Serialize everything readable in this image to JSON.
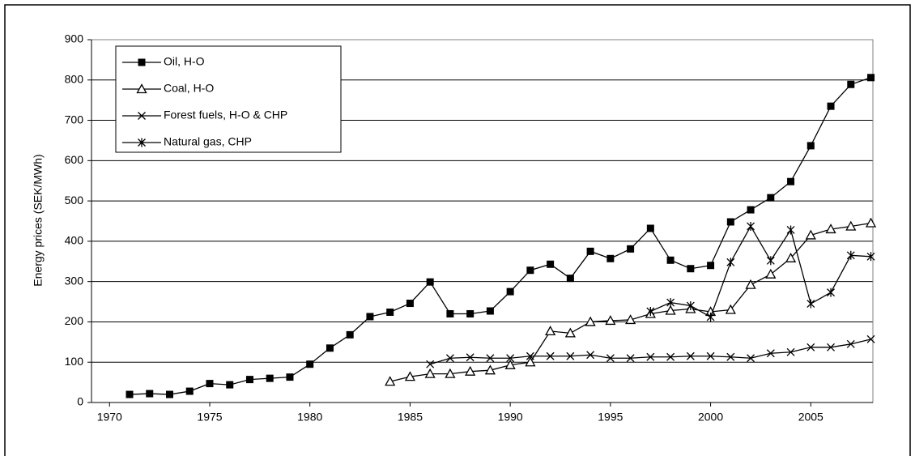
{
  "chart_data": {
    "type": "line",
    "y_label": "Energy prices (SEK/MWh)",
    "x": [
      1971,
      1972,
      1973,
      1974,
      1975,
      1976,
      1977,
      1978,
      1979,
      1980,
      1981,
      1982,
      1983,
      1984,
      1985,
      1986,
      1987,
      1988,
      1989,
      1990,
      1991,
      1992,
      1993,
      1994,
      1995,
      1996,
      1997,
      1998,
      1999,
      2000,
      2001,
      2002,
      2003,
      2004,
      2005,
      2006,
      2007,
      2008
    ],
    "series": [
      {
        "name": "Oil, H-O",
        "color": "#000000",
        "marker": "square",
        "values": [
          20,
          22,
          20,
          28,
          47,
          44,
          57,
          60,
          63,
          95,
          135,
          168,
          213,
          224,
          246,
          299,
          220,
          220,
          227,
          275,
          328,
          343,
          308,
          375,
          357,
          381,
          432,
          353,
          332,
          340,
          448,
          478,
          508,
          548,
          637,
          735,
          789,
          806
        ]
      },
      {
        "name": "Coal, H-O",
        "color": "#000000",
        "marker": "triangle",
        "values": [
          null,
          null,
          null,
          null,
          null,
          null,
          null,
          null,
          null,
          null,
          null,
          null,
          null,
          52,
          64,
          71,
          71,
          77,
          80,
          93,
          100,
          177,
          172,
          200,
          203,
          205,
          220,
          228,
          232,
          225,
          230,
          292,
          318,
          358,
          415,
          430,
          437,
          445
        ]
      },
      {
        "name": "Forest fuels, H-O & CHP",
        "color": "#000000",
        "marker": "x",
        "values": [
          null,
          null,
          null,
          null,
          null,
          null,
          null,
          null,
          null,
          null,
          null,
          null,
          null,
          null,
          null,
          95,
          110,
          112,
          110,
          110,
          115,
          115,
          115,
          118,
          110,
          110,
          113,
          113,
          115,
          115,
          113,
          110,
          122,
          125,
          137,
          137,
          145,
          157
        ]
      },
      {
        "name": "Natural gas, CHP",
        "color": "#000000",
        "marker": "asterisk",
        "values": [
          null,
          null,
          null,
          null,
          null,
          null,
          null,
          null,
          null,
          null,
          null,
          null,
          null,
          null,
          null,
          null,
          null,
          null,
          null,
          null,
          null,
          null,
          null,
          null,
          null,
          null,
          226,
          248,
          240,
          212,
          348,
          437,
          352,
          428,
          245,
          273,
          365,
          362
        ]
      }
    ],
    "xlim": [
      1969.1,
      2008.1
    ],
    "xticks": [
      1970,
      1975,
      1980,
      1985,
      1990,
      1995,
      2000,
      2005
    ],
    "ylim": [
      0,
      900
    ],
    "yticks": [
      0,
      100,
      200,
      300,
      400,
      500,
      600,
      700,
      800,
      900
    ],
    "grid": true,
    "legend": "upper-left"
  }
}
